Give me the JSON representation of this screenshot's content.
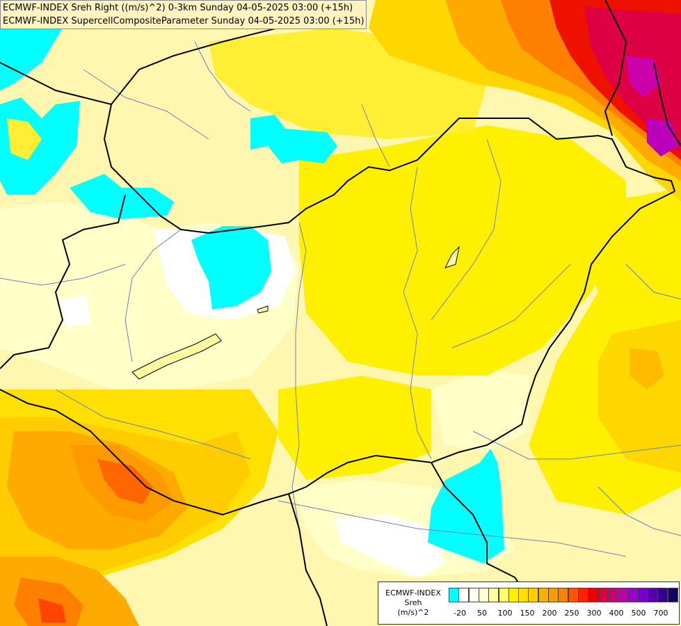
{
  "header": {
    "line1": "ECMWF-INDEX Sreh Right ((m/s)^2) 0-3km Sunday 04-05-2025 03:00 (+15h)",
    "line2": "ECMWF-INDEX SupercellCompositeParameter Sunday 04-05-2025 03:00 (+15h)"
  },
  "legend": {
    "model": "ECMWF-INDEX",
    "variable": "Sreh",
    "unit": "(m/s)^2",
    "colors": [
      "#00ffff",
      "#ffffff",
      "#fffff0",
      "#ffffd0",
      "#ffffa0",
      "#ffff70",
      "#fff000",
      "#ffe000",
      "#ffcc00",
      "#ffb000",
      "#ff9900",
      "#ff7f00",
      "#ff5500",
      "#ff2200",
      "#ee0000",
      "#dd0044",
      "#cc0077",
      "#bb00aa",
      "#9900cc",
      "#7700cc",
      "#5500aa",
      "#330088",
      "#110066"
    ],
    "ticks": [
      "-20",
      "50",
      "100",
      "150",
      "200",
      "250",
      "300",
      "400",
      "500",
      "700"
    ]
  },
  "palette": {
    "cyan": "#00ffff",
    "white": "#ffffff",
    "pale_yellow": "#ffffc8",
    "light_yellow": "#fff6b0",
    "yellow": "#ffee00",
    "gold": "#ffd700",
    "orange": "#ffaa00",
    "dark_orange": "#ff7f00",
    "red_orange": "#ff4500",
    "red": "#ee0022",
    "crimson": "#dd0055",
    "magenta": "#cc00aa",
    "purple": "#aa00cc"
  }
}
